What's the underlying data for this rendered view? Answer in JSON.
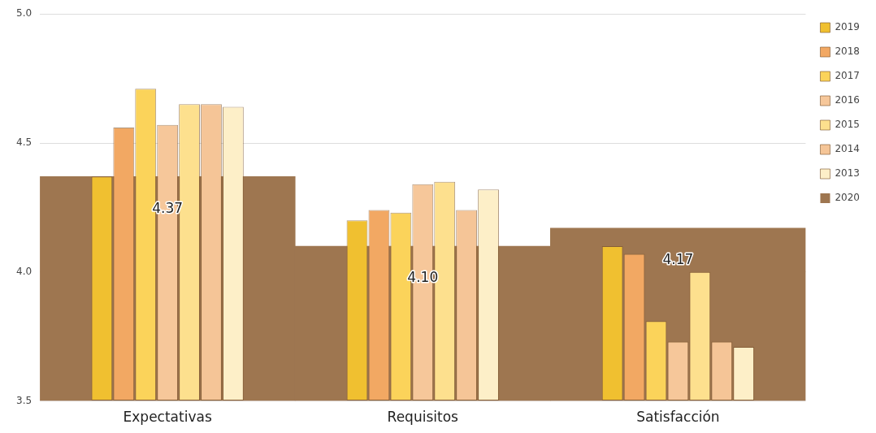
{
  "chart_data": {
    "type": "bar",
    "categories": [
      "Expectativas",
      "Requisitos",
      "Satisfacción"
    ],
    "series": [
      {
        "name": "2019",
        "color": "#f0c030",
        "values": [
          4.37,
          4.2,
          4.1
        ]
      },
      {
        "name": "2018",
        "color": "#f2a863",
        "values": [
          4.56,
          4.24,
          4.07
        ]
      },
      {
        "name": "2017",
        "color": "#fbd35a",
        "values": [
          4.71,
          4.23,
          3.81
        ]
      },
      {
        "name": "2016",
        "color": "#f6c79a",
        "values": [
          4.57,
          4.34,
          3.73
        ]
      },
      {
        "name": "2015",
        "color": "#fde08e",
        "values": [
          4.65,
          4.35,
          4.0
        ]
      },
      {
        "name": "2014",
        "color": "#f5c597",
        "values": [
          4.65,
          4.24,
          3.73
        ]
      },
      {
        "name": "2013",
        "color": "#fdefc8",
        "values": [
          4.64,
          4.32,
          3.71
        ]
      },
      {
        "name": "2020",
        "color": "#9e7650",
        "values": [
          4.37,
          4.1,
          4.17
        ],
        "value_labels": [
          "4.37",
          "4.10",
          "4.17"
        ]
      }
    ],
    "ylim": [
      3.5,
      5.0
    ],
    "yticks": [
      {
        "value": 3.5,
        "label": "3.5"
      },
      {
        "value": 4.0,
        "label": "4.0"
      },
      {
        "value": 4.5,
        "label": "4.5"
      },
      {
        "value": 5.0,
        "label": "5.0"
      }
    ],
    "grid": "y",
    "legend": "top right"
  }
}
